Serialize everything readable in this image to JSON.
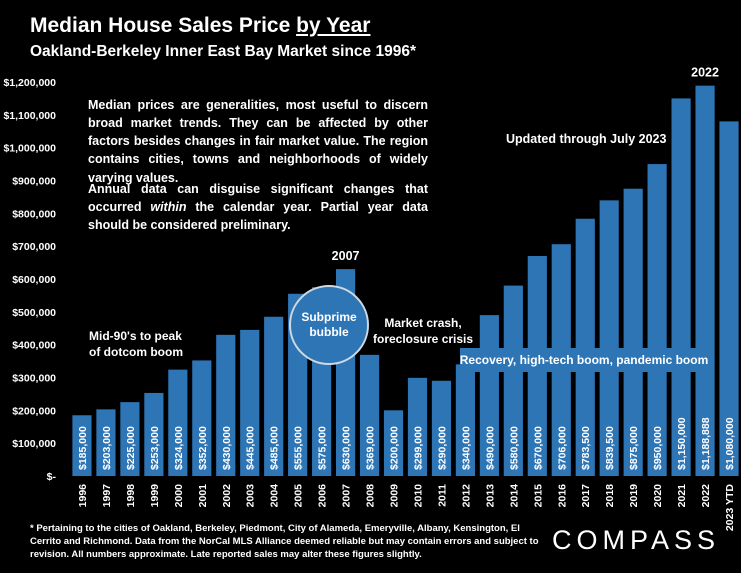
{
  "title_main": "Median House Sales Price ",
  "title_suffix": "by Year",
  "subtitle": "Oakland-Berkeley Inner East Bay Market since 1996*",
  "note_1": "Median prices are generalities, most useful to discern broad market trends. They can be affected by other factors besides changes in fair market value. The region contains cities, towns and neighborhoods of widely varying values.",
  "note_2_a": "Annual data can disguise significant changes that occurred ",
  "note_2_em": "within",
  "note_2_b": " the calendar year. Partial year data should be considered preliminary.",
  "updated_note": "Updated through July 2023",
  "annotations": {
    "dotcom_1": "Mid-90's to peak",
    "dotcom_2": "of dotcom boom",
    "bubble_1": "Subprime",
    "bubble_2": "bubble",
    "crash_1": "Market crash,",
    "crash_2": "foreclosure crisis",
    "recovery": "Recovery, high-tech boom, pandemic boom"
  },
  "footnote": "* Pertaining to the cities of Oakland, Berkeley, Piedmont, City of Alameda, Emeryville, Albany, Kensington, El Cerrito and Richmond. Data from the NorCal MLS Alliance deemed reliable but may contain errors and subject to revision. All numbers approximate. Late reported sales may alter these figures slightly.",
  "logo_text": "COMPASS",
  "colors": {
    "bar": "#2e75b6",
    "background": "#000000",
    "text": "#ffffff"
  },
  "chart_data": {
    "type": "bar",
    "categories": [
      "1996",
      "1997",
      "1998",
      "1999",
      "2000",
      "2001",
      "2002",
      "2003",
      "2004",
      "2005",
      "2006",
      "2007",
      "2008",
      "2009",
      "2010",
      "2011",
      "2012",
      "2013",
      "2014",
      "2015",
      "2016",
      "2017",
      "2018",
      "2019",
      "2020",
      "2021",
      "2022",
      "2023 YTD"
    ],
    "values": [
      185000,
      203000,
      225000,
      253000,
      324000,
      352000,
      430000,
      445000,
      485000,
      555000,
      575000,
      630000,
      369000,
      200000,
      299000,
      290000,
      340000,
      490000,
      580000,
      670000,
      706000,
      783500,
      839500,
      875000,
      950000,
      1150000,
      1188888,
      1080000
    ],
    "data_labels": [
      "$185,000",
      "$203,000",
      "$225,000",
      "$253,000",
      "$324,000",
      "$352,000",
      "$430,000",
      "$445,000",
      "$485,000",
      "$555,000",
      "$575,000",
      "$630,000",
      "$369,000",
      "$200,000",
      "$299,000",
      "$290,000",
      "$340,000",
      "$490,000",
      "$580,000",
      "$670,000",
      "$706,000",
      "$783,500",
      "$839,500",
      "$875,000",
      "$950,000",
      "$1,150,000",
      "$1,188,888",
      "$1,080,000"
    ],
    "y_ticks": [
      0,
      100000,
      200000,
      300000,
      400000,
      500000,
      600000,
      700000,
      800000,
      900000,
      1000000,
      1100000,
      1200000
    ],
    "y_tick_labels": [
      "$-",
      "$100,000",
      "$200,000",
      "$300,000",
      "$400,000",
      "$500,000",
      "$600,000",
      "$700,000",
      "$800,000",
      "$900,000",
      "$1,000,000",
      "$1,100,000",
      "$1,200,000"
    ],
    "ylim": [
      0,
      1200000
    ],
    "highlights": [
      {
        "category": "2007",
        "label": "2007"
      },
      {
        "category": "2022",
        "label": "2022"
      }
    ],
    "grid": false
  }
}
